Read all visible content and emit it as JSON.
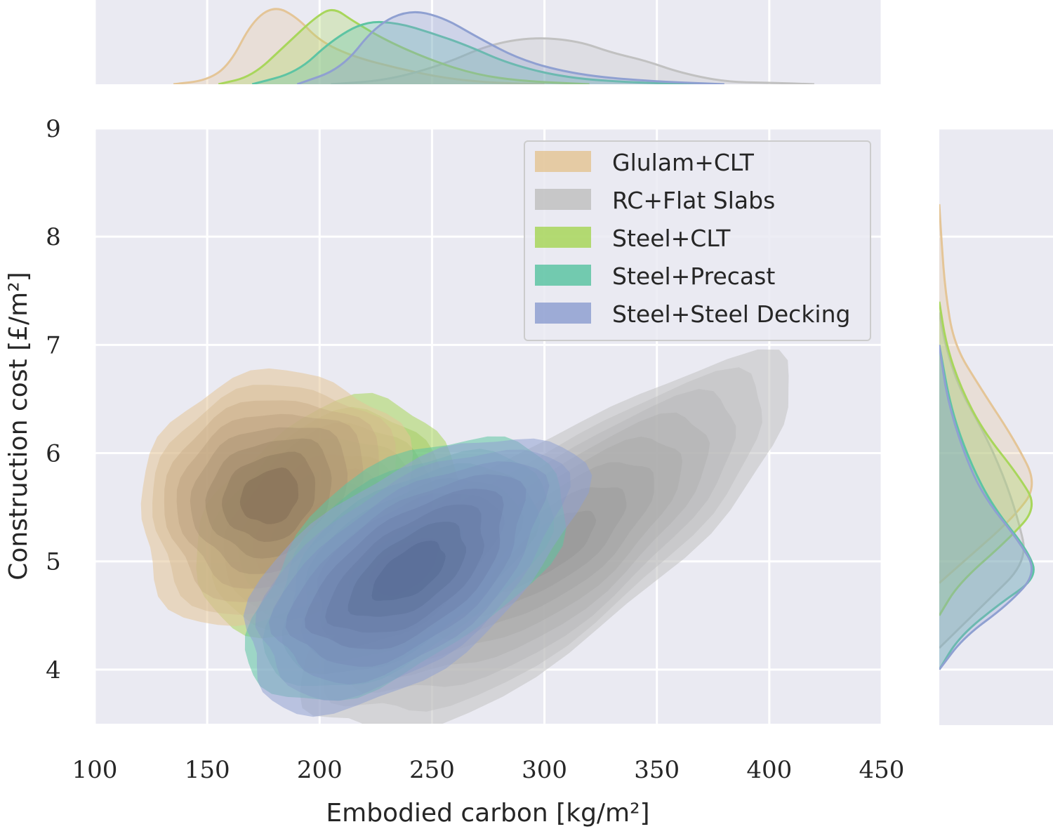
{
  "chart_data": {
    "type": "joint-kde",
    "title": "",
    "xlabel": "Embodied carbon [kg/m²]",
    "ylabel": "Construction cost [£/m²]",
    "xlim": [
      100,
      450
    ],
    "ylim": [
      3.5,
      9
    ],
    "xticks": [
      100,
      150,
      200,
      250,
      300,
      350,
      400,
      450
    ],
    "yticks": [
      4,
      5,
      6,
      7,
      8,
      9
    ],
    "grid": true,
    "legend_position": "top-right",
    "series": [
      {
        "name": "Glulam+CLT",
        "color": "#e4c597",
        "fill_dark": "#6f5d49",
        "peak": [
          178,
          5.6
        ],
        "spread": [
          22,
          0.55
        ],
        "marginal_x": [
          [
            135,
            0
          ],
          [
            150,
            0.05
          ],
          [
            160,
            0.25
          ],
          [
            170,
            0.8
          ],
          [
            180,
            1.0
          ],
          [
            190,
            0.85
          ],
          [
            200,
            0.55
          ],
          [
            215,
            0.35
          ],
          [
            235,
            0.2
          ],
          [
            255,
            0.08
          ],
          [
            275,
            0.02
          ],
          [
            300,
            0
          ]
        ],
        "marginal_y": [
          [
            4.8,
            0
          ],
          [
            5.0,
            0.25
          ],
          [
            5.4,
            0.75
          ],
          [
            5.7,
            1.0
          ],
          [
            6.1,
            0.78
          ],
          [
            6.6,
            0.42
          ],
          [
            7.0,
            0.15
          ],
          [
            7.5,
            0.06
          ],
          [
            8.0,
            0.02
          ],
          [
            8.3,
            0
          ]
        ]
      },
      {
        "name": "RC+Flat Slabs",
        "color": "#c1c1c1",
        "fill_dark": "#8e8e8e",
        "peak": [
          300,
          5.1
        ],
        "spread": [
          45,
          0.45
        ],
        "marginal_x": [
          [
            205,
            0
          ],
          [
            230,
            0.05
          ],
          [
            255,
            0.25
          ],
          [
            275,
            0.5
          ],
          [
            295,
            0.6
          ],
          [
            315,
            0.55
          ],
          [
            330,
            0.4
          ],
          [
            345,
            0.3
          ],
          [
            360,
            0.15
          ],
          [
            380,
            0.03
          ],
          [
            400,
            0.02
          ],
          [
            420,
            0
          ]
        ],
        "marginal_y": [
          [
            4.2,
            0
          ],
          [
            4.6,
            0.45
          ],
          [
            5.0,
            0.9
          ],
          [
            5.4,
            0.8
          ],
          [
            5.8,
            0.65
          ],
          [
            6.2,
            0.45
          ],
          [
            6.6,
            0.2
          ],
          [
            7.0,
            0.06
          ],
          [
            7.3,
            0
          ]
        ]
      },
      {
        "name": "Steel+CLT",
        "color": "#a8d65b",
        "fill_dark": "#4f6d28",
        "peak": [
          205,
          5.35
        ],
        "spread": [
          22,
          0.5
        ],
        "marginal_x": [
          [
            155,
            0
          ],
          [
            170,
            0.1
          ],
          [
            185,
            0.5
          ],
          [
            198,
            0.85
          ],
          [
            206,
            0.98
          ],
          [
            215,
            0.8
          ],
          [
            230,
            0.55
          ],
          [
            250,
            0.3
          ],
          [
            270,
            0.12
          ],
          [
            290,
            0.04
          ],
          [
            320,
            0
          ]
        ],
        "marginal_y": [
          [
            4.5,
            0
          ],
          [
            4.8,
            0.2
          ],
          [
            5.2,
            0.7
          ],
          [
            5.5,
            1.0
          ],
          [
            5.8,
            0.8
          ],
          [
            6.2,
            0.45
          ],
          [
            6.6,
            0.22
          ],
          [
            7.0,
            0.07
          ],
          [
            7.4,
            0
          ]
        ]
      },
      {
        "name": "Steel+Precast",
        "color": "#5dc4a3",
        "fill_dark": "#2f7460",
        "peak": [
          238,
          4.95
        ],
        "spread": [
          28,
          0.45
        ],
        "marginal_x": [
          [
            170,
            0
          ],
          [
            190,
            0.15
          ],
          [
            205,
            0.55
          ],
          [
            220,
            0.8
          ],
          [
            235,
            0.78
          ],
          [
            250,
            0.65
          ],
          [
            265,
            0.5
          ],
          [
            285,
            0.25
          ],
          [
            310,
            0.08
          ],
          [
            340,
            0.02
          ],
          [
            370,
            0
          ]
        ],
        "marginal_y": [
          [
            4.0,
            0
          ],
          [
            4.3,
            0.2
          ],
          [
            4.6,
            0.6
          ],
          [
            4.85,
            1.0
          ],
          [
            5.1,
            0.9
          ],
          [
            5.5,
            0.55
          ],
          [
            5.9,
            0.32
          ],
          [
            6.4,
            0.12
          ],
          [
            7.0,
            0
          ]
        ]
      },
      {
        "name": "Steel+Steel Decking",
        "color": "#8fa0d1",
        "fill_dark": "#4a5f86",
        "peak": [
          240,
          4.9
        ],
        "spread": [
          30,
          0.45
        ],
        "marginal_x": [
          [
            190,
            0
          ],
          [
            210,
            0.2
          ],
          [
            225,
            0.75
          ],
          [
            240,
            0.95
          ],
          [
            255,
            0.85
          ],
          [
            270,
            0.6
          ],
          [
            290,
            0.3
          ],
          [
            315,
            0.12
          ],
          [
            345,
            0.04
          ],
          [
            380,
            0
          ]
        ],
        "marginal_y": [
          [
            4.0,
            0
          ],
          [
            4.3,
            0.25
          ],
          [
            4.6,
            0.7
          ],
          [
            4.9,
            1.0
          ],
          [
            5.2,
            0.8
          ],
          [
            5.6,
            0.45
          ],
          [
            6.0,
            0.25
          ],
          [
            6.5,
            0.08
          ],
          [
            7.0,
            0
          ]
        ]
      }
    ]
  }
}
